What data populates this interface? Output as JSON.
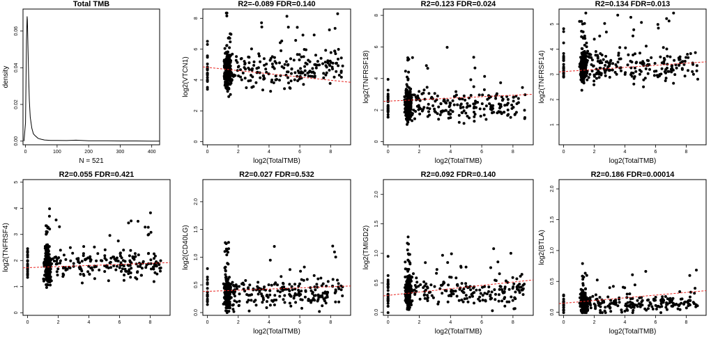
{
  "chart_data": [
    {
      "type": "line",
      "title": "Total TMB",
      "xlabel": "N = 521",
      "ylabel": "density",
      "xlim": [
        -8,
        425
      ],
      "ylim": [
        -0.002,
        0.072
      ],
      "xticks": [
        0,
        100,
        200,
        300,
        400
      ],
      "yticks": [
        0.0,
        0.02,
        0.04,
        0.06
      ],
      "ytick_labels": [
        "0.00",
        "0.02",
        "0.04",
        "0.06"
      ],
      "series": [
        {
          "name": "density",
          "x": [
            -5,
            0,
            3,
            5,
            6,
            8,
            10,
            12,
            15,
            20,
            25,
            30,
            40,
            50,
            60,
            80,
            100,
            130,
            160,
            200,
            260,
            300,
            350,
            400,
            425
          ],
          "y": [
            0.0,
            0.01,
            0.055,
            0.068,
            0.066,
            0.05,
            0.035,
            0.022,
            0.013,
            0.007,
            0.004,
            0.003,
            0.0015,
            0.001,
            0.0006,
            0.0004,
            0.0004,
            0.0003,
            0.0005,
            0.0002,
            0.0002,
            0.0001,
            0.0001,
            0.0,
            0.0
          ]
        }
      ]
    },
    {
      "type": "scatter",
      "title": "R2=-0.089 FDR=0.140",
      "xlabel": "log2(TotalTMB)",
      "ylabel": "log2(VTCN1)",
      "xlim": [
        -0.3,
        9.3
      ],
      "ylim": [
        -0.2,
        8.6
      ],
      "xticks": [
        0,
        2,
        4,
        6,
        8
      ],
      "yticks": [
        0,
        2,
        4,
        6,
        8
      ],
      "fit": {
        "x": [
          -0.3,
          9.3
        ],
        "y": [
          4.85,
          3.85
        ]
      },
      "n_points": 460,
      "cluster": [
        1.3,
        4.6
      ],
      "spread_y": 1.6,
      "seed": 11
    },
    {
      "type": "scatter",
      "title": "R2=0.123 FDR=0.024",
      "xlabel": "log2(TotalTMB)",
      "ylabel": "log2(TNFRSF18)",
      "xlim": [
        -0.3,
        9.3
      ],
      "ylim": [
        -0.2,
        8.4
      ],
      "xticks": [
        0,
        2,
        4,
        6,
        8
      ],
      "yticks": [
        0,
        2,
        4,
        6,
        8
      ],
      "fit": {
        "x": [
          -0.3,
          9.3
        ],
        "y": [
          2.55,
          3.0
        ]
      },
      "n_points": 460,
      "cluster": [
        1.3,
        2.3
      ],
      "spread_y": 1.2,
      "seed": 23
    },
    {
      "type": "scatter",
      "title": "R2=0.134 FDR=0.013",
      "xlabel": "log2(TotalTMB)",
      "ylabel": "log2(TNFRSF14)",
      "xlim": [
        -0.3,
        9.3
      ],
      "ylim": [
        0.2,
        5.6
      ],
      "xticks": [
        0,
        2,
        4,
        6,
        8
      ],
      "yticks": [
        1,
        2,
        3,
        4,
        5
      ],
      "fit": {
        "x": [
          -0.3,
          9.3
        ],
        "y": [
          3.1,
          3.5
        ]
      },
      "n_points": 460,
      "cluster": [
        1.3,
        3.3
      ],
      "spread_y": 0.8,
      "seed": 37
    },
    {
      "type": "scatter",
      "title": "R2=0.055 FDR=0.421",
      "xlabel": "",
      "ylabel": "log2(TNFRSF4)",
      "xlim": [
        -0.3,
        9.3
      ],
      "ylim": [
        -0.1,
        5.1
      ],
      "xticks": [
        0,
        2,
        4,
        6,
        8
      ],
      "yticks": [
        0,
        1,
        2,
        3,
        4,
        5
      ],
      "fit": {
        "x": [
          -0.3,
          9.3
        ],
        "y": [
          1.72,
          1.92
        ]
      },
      "n_points": 460,
      "cluster": [
        1.3,
        1.8
      ],
      "spread_y": 0.75,
      "seed": 41
    },
    {
      "type": "scatter",
      "title": "R2=0.027 FDR=0.532",
      "xlabel": "log2(TotalTMB)",
      "ylabel": "log2(CD40LG)",
      "xlim": [
        -0.3,
        9.3
      ],
      "ylim": [
        -0.05,
        2.4
      ],
      "xticks": [
        0,
        2,
        4,
        6,
        8
      ],
      "yticks": [
        0.0,
        0.5,
        1.0,
        1.5,
        2.0
      ],
      "ytick_labels": [
        "0.0",
        "0.5",
        "1.0",
        "1.5",
        "2.0"
      ],
      "fit": {
        "x": [
          -0.3,
          9.3
        ],
        "y": [
          0.38,
          0.48
        ]
      },
      "n_points": 460,
      "cluster": [
        1.3,
        0.35
      ],
      "spread_y": 0.35,
      "seed": 53
    },
    {
      "type": "scatter",
      "title": "R2=0.092 FDR=0.140",
      "xlabel": "log2(TotalTMB)",
      "ylabel": "log2(TMIGD2)",
      "xlim": [
        -0.3,
        9.3
      ],
      "ylim": [
        -0.05,
        2.25
      ],
      "xticks": [
        0,
        2,
        4,
        6,
        8
      ],
      "yticks": [
        0.0,
        0.5,
        1.0,
        1.5,
        2.0
      ],
      "ytick_labels": [
        "0.0",
        "0.5",
        "1.0",
        "1.5",
        "2.0"
      ],
      "fit": {
        "x": [
          -0.3,
          9.3
        ],
        "y": [
          0.28,
          0.55
        ]
      },
      "n_points": 460,
      "cluster": [
        1.3,
        0.35
      ],
      "spread_y": 0.35,
      "seed": 67
    },
    {
      "type": "scatter",
      "title": "R2=0.186 FDR=0.00014",
      "xlabel": "log2(TotalTMB)",
      "ylabel": "log2(BTLA)",
      "xlim": [
        -0.3,
        9.3
      ],
      "ylim": [
        -0.05,
        2.15
      ],
      "xticks": [
        0,
        2,
        4,
        6,
        8
      ],
      "yticks": [
        0.0,
        0.5,
        1.0,
        1.5,
        2.0
      ],
      "ytick_labels": [
        "0.0",
        "0.5",
        "1.0",
        "1.5",
        "2.0"
      ],
      "fit": {
        "x": [
          -0.3,
          9.3
        ],
        "y": [
          0.14,
          0.35
        ]
      },
      "n_points": 460,
      "cluster": [
        1.3,
        0.15
      ],
      "spread_y": 0.22,
      "seed": 79
    }
  ],
  "colors": {
    "points": "#000000",
    "fit_line": "#e8231f",
    "axes": "#000000"
  }
}
